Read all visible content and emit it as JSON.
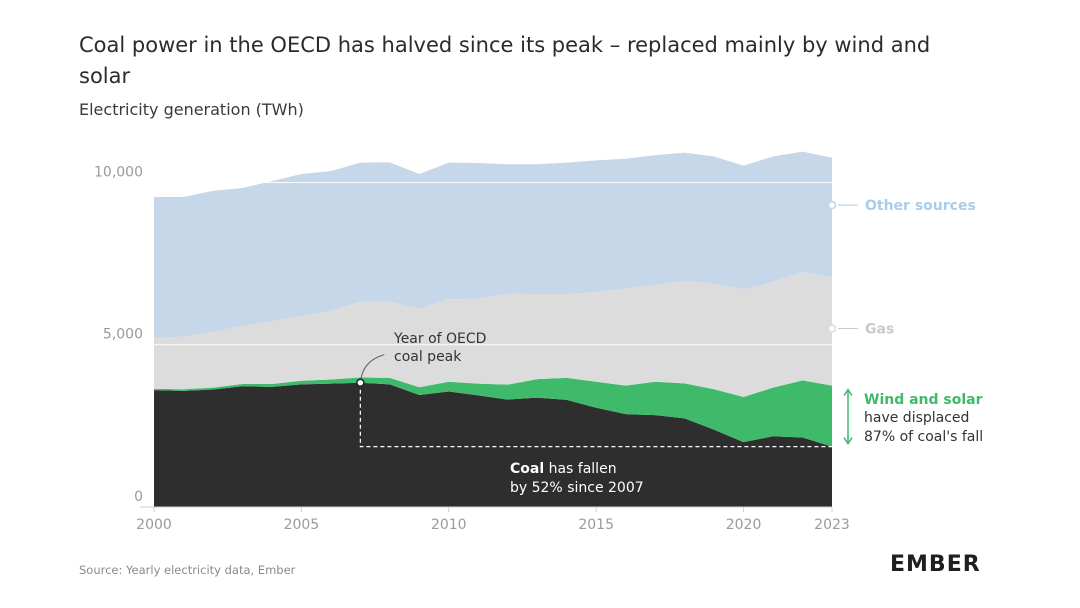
{
  "header": {
    "title": "Coal power in the OECD has halved since its peak – replaced mainly by wind and solar",
    "subtitle": "Electricity generation (TWh)"
  },
  "footer": {
    "source": "Source: Yearly electricity data, Ember",
    "logo": "EMBER"
  },
  "colors": {
    "coal": "#2e2e2e",
    "wind_solar": "#3fba6a",
    "gas": "#dcdcdc",
    "other": "#c5d7e8",
    "other_label": "#a9cdeb",
    "gas_label": "#c9c9c9",
    "wind_label": "#3fba6a",
    "axis_text": "#9a9a9a"
  },
  "chart_data": {
    "type": "area",
    "stacked": true,
    "title": "Coal power in the OECD has halved since its peak – replaced mainly by wind and solar",
    "ylabel": "Electricity generation (TWh)",
    "xlabel": "",
    "x": [
      2000,
      2001,
      2002,
      2003,
      2004,
      2005,
      2006,
      2007,
      2008,
      2009,
      2010,
      2011,
      2012,
      2013,
      2014,
      2015,
      2016,
      2017,
      2018,
      2019,
      2020,
      2021,
      2022,
      2023
    ],
    "xlim": [
      2000,
      2023
    ],
    "ylim": [
      0,
      11000
    ],
    "xticks": [
      "2000",
      "2005",
      "2010",
      "2015",
      "2020",
      "2023"
    ],
    "yticks": [
      {
        "value": 0,
        "label": "0"
      },
      {
        "value": 5000,
        "label": "5,000"
      },
      {
        "value": 10000,
        "label": "10,000"
      }
    ],
    "series": [
      {
        "name": "Coal",
        "key": "coal",
        "values": [
          3600,
          3580,
          3620,
          3720,
          3700,
          3780,
          3800,
          3830,
          3780,
          3450,
          3560,
          3440,
          3310,
          3370,
          3300,
          3060,
          2860,
          2830,
          2730,
          2380,
          2000,
          2180,
          2140,
          1860
        ]
      },
      {
        "name": "Wind and solar",
        "key": "wind_solar",
        "values": [
          40,
          50,
          60,
          70,
          90,
          110,
          130,
          160,
          200,
          240,
          300,
          360,
          460,
          570,
          680,
          800,
          880,
          1030,
          1080,
          1250,
          1390,
          1500,
          1760,
          1880
        ]
      },
      {
        "name": "Gas",
        "key": "gas",
        "values": [
          1560,
          1620,
          1720,
          1780,
          1920,
          2000,
          2120,
          2330,
          2350,
          2420,
          2540,
          2620,
          2800,
          2620,
          2580,
          2760,
          3000,
          2980,
          3160,
          3250,
          3310,
          3260,
          3340,
          3330
        ]
      },
      {
        "name": "Other sources",
        "key": "other",
        "values": [
          4350,
          4300,
          4340,
          4260,
          4330,
          4370,
          4300,
          4290,
          4290,
          4150,
          4210,
          4180,
          3990,
          4000,
          4050,
          4060,
          3990,
          4000,
          3950,
          3920,
          3820,
          3860,
          3710,
          3690
        ]
      }
    ],
    "labels": {
      "other": "Other sources",
      "gas": "Gas",
      "wind_bold": "Wind and solar",
      "wind_line2": "have displaced",
      "wind_line3": "87% of coal's fall",
      "peak_line1": "Year of OECD",
      "peak_line2": "coal peak",
      "coal_bold": "Coal",
      "coal_rest": " has fallen",
      "coal_line2": "by 52% since 2007"
    },
    "annotations": {
      "coal_peak_year": 2007,
      "coal_peak_value": 3830,
      "coal_2023_value": 1860
    }
  }
}
